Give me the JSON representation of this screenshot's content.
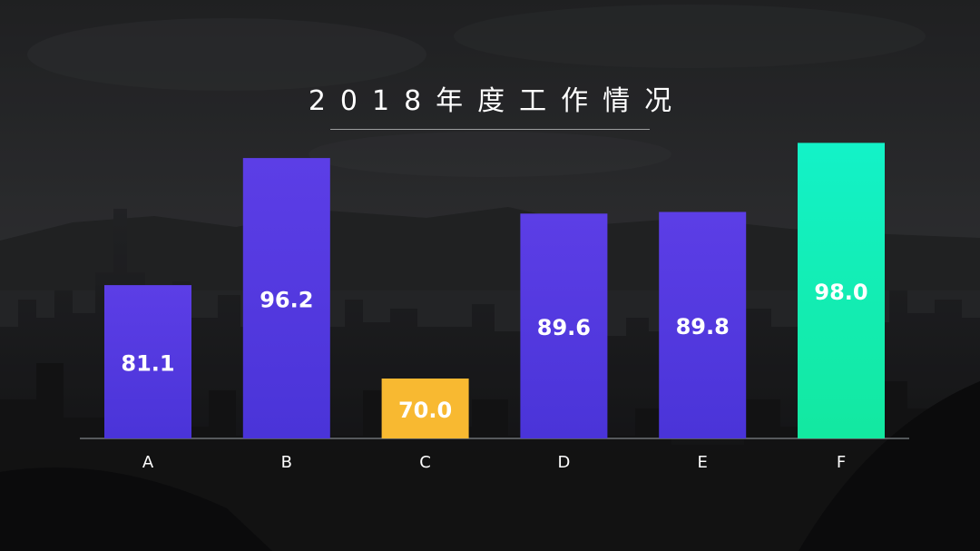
{
  "title": "2018年度工作情况",
  "colors": {
    "default_top": "#5c3ee6",
    "default_bottom": "#4a34d8",
    "highlight_low": "#f8b931",
    "highlight_high_top": "#13f2c8",
    "highlight_high_bottom": "#13e8a0",
    "label": "#ffffff",
    "axis": "#9aa0a6"
  },
  "chart_data": {
    "type": "bar",
    "categories": [
      "A",
      "B",
      "C",
      "D",
      "E",
      "F"
    ],
    "values": [
      81.1,
      96.2,
      70.0,
      89.6,
      89.8,
      98.0
    ],
    "value_labels": [
      "81.1",
      "96.2",
      "70.0",
      "89.6",
      "89.8",
      "98.0"
    ],
    "bar_styles": [
      "default",
      "default",
      "low",
      "default",
      "default",
      "high"
    ],
    "title": "2018年度工作情况",
    "xlabel": "",
    "ylabel": "",
    "grid": false,
    "legend": "none"
  }
}
